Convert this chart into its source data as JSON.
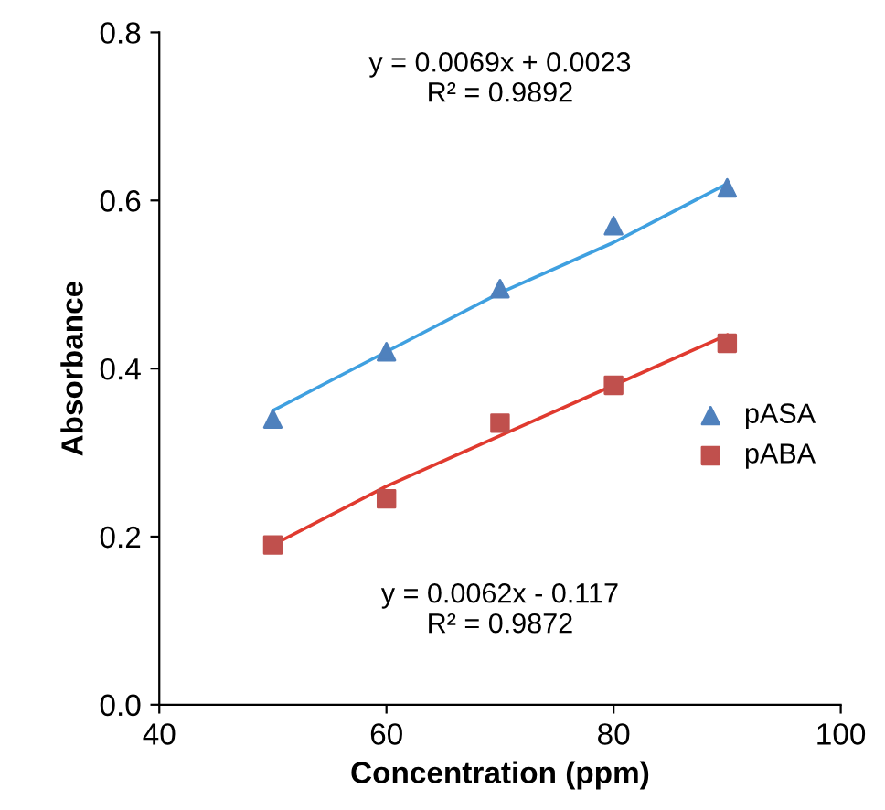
{
  "chart_data": {
    "type": "scatter",
    "xlabel": "Concentration (ppm)",
    "ylabel": "Absorbance",
    "x": [
      50,
      60,
      70,
      80,
      90
    ],
    "series": [
      {
        "name": "pASA",
        "color": "#4f81bd",
        "marker": "triangle",
        "values": [
          0.34,
          0.42,
          0.495,
          0.57,
          0.615
        ]
      },
      {
        "name": "pABA",
        "color": "#c0504d",
        "marker": "square",
        "values": [
          0.19,
          0.245,
          0.335,
          0.38,
          0.43
        ]
      },
      {
        "type": "line",
        "color": "#3fa0e0",
        "values": [
          0.35,
          0.42,
          0.49,
          0.55,
          0.62
        ]
      },
      {
        "type": "line",
        "color": "#e03a2f",
        "values": [
          0.19,
          0.26,
          0.32,
          0.38,
          0.44
        ]
      }
    ],
    "annotations": [
      "y = 0.0069x + 0.0023\nR² = 0.9892",
      "y = 0.0062x - 0.117\nR² = 0.9872"
    ],
    "xlim": [
      40,
      100
    ],
    "xticks": [
      40,
      60,
      80,
      100
    ],
    "ylim": [
      0,
      0.8
    ],
    "yticks": [
      {
        "value": 0,
        "label": "0.0"
      },
      0.2,
      0.4,
      0.6,
      0.8
    ],
    "grid": false,
    "legend": "right"
  }
}
